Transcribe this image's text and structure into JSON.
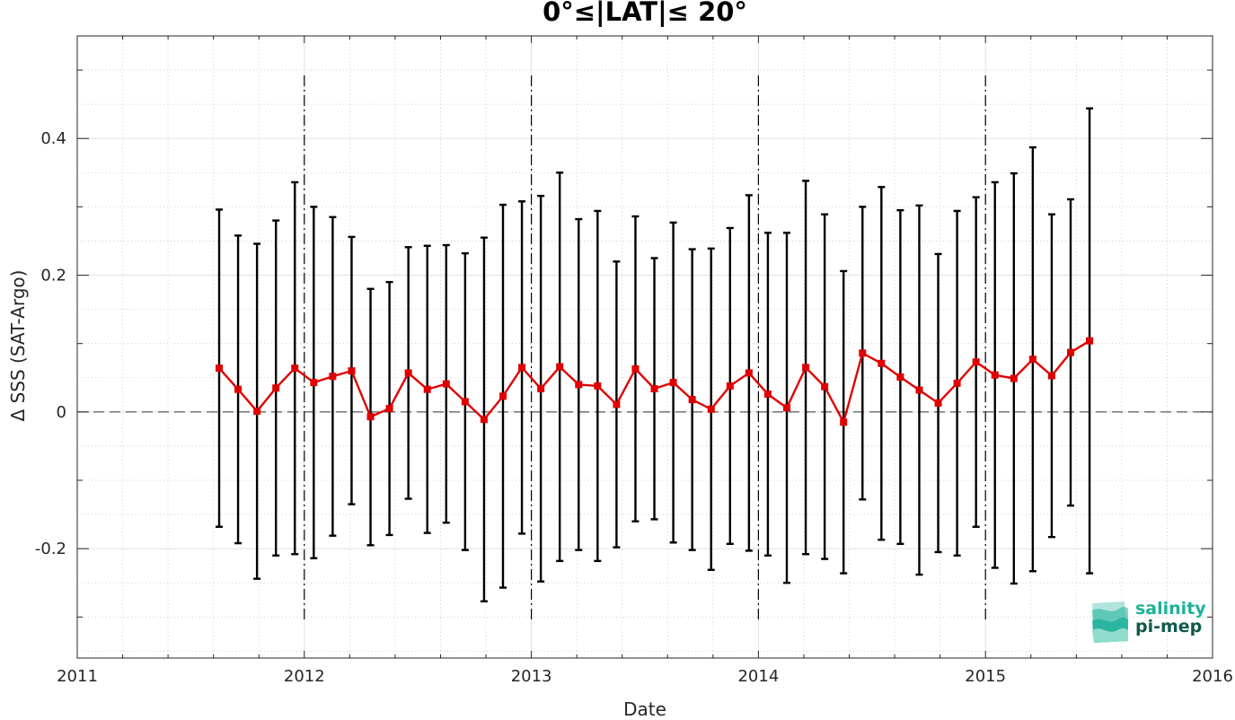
{
  "chart_data": {
    "type": "line",
    "title": "0°≤|LAT|≤ 20°",
    "xlabel": "Date",
    "ylabel": "Δ SSS (SAT-Argo)",
    "xlim": [
      2011,
      2016
    ],
    "ylim": [
      -0.36,
      0.55
    ],
    "x_ticks": [
      "2011",
      "2012",
      "2013",
      "2014",
      "2015",
      "2016"
    ],
    "y_ticks": [
      "0.4",
      "0.2",
      "0",
      "-0.2"
    ],
    "y_tick_values": [
      0.4,
      0.2,
      0,
      -0.2
    ],
    "grid": true,
    "series": [
      {
        "color": "#e00000",
        "marker": "square",
        "points": [
          {
            "x": "2011-08",
            "y": 0.064,
            "low": -0.168,
            "high": 0.296
          },
          {
            "x": "2011-09",
            "y": 0.033,
            "low": -0.192,
            "high": 0.258
          },
          {
            "x": "2011-10",
            "y": 0.001,
            "low": -0.244,
            "high": 0.246
          },
          {
            "x": "2011-11",
            "y": 0.035,
            "low": -0.21,
            "high": 0.28
          },
          {
            "x": "2011-12",
            "y": 0.064,
            "low": -0.208,
            "high": 0.336
          },
          {
            "x": "2012-01",
            "y": 0.043,
            "low": -0.214,
            "high": 0.3
          },
          {
            "x": "2012-02",
            "y": 0.052,
            "low": -0.181,
            "high": 0.285
          },
          {
            "x": "2012-03",
            "y": 0.06,
            "low": -0.135,
            "high": 0.256
          },
          {
            "x": "2012-04",
            "y": -0.007,
            "low": -0.195,
            "high": 0.18
          },
          {
            "x": "2012-05",
            "y": 0.005,
            "low": -0.18,
            "high": 0.19
          },
          {
            "x": "2012-06",
            "y": 0.057,
            "low": -0.127,
            "high": 0.241
          },
          {
            "x": "2012-07",
            "y": 0.033,
            "low": -0.177,
            "high": 0.243
          },
          {
            "x": "2012-08",
            "y": 0.041,
            "low": -0.162,
            "high": 0.244
          },
          {
            "x": "2012-09",
            "y": 0.015,
            "low": -0.202,
            "high": 0.232
          },
          {
            "x": "2012-10",
            "y": -0.011,
            "low": -0.277,
            "high": 0.255
          },
          {
            "x": "2012-11",
            "y": 0.023,
            "low": -0.257,
            "high": 0.303
          },
          {
            "x": "2012-12",
            "y": 0.065,
            "low": -0.178,
            "high": 0.308
          },
          {
            "x": "2013-01",
            "y": 0.034,
            "low": -0.248,
            "high": 0.316
          },
          {
            "x": "2013-02",
            "y": 0.066,
            "low": -0.218,
            "high": 0.35
          },
          {
            "x": "2013-03",
            "y": 0.04,
            "low": -0.202,
            "high": 0.282
          },
          {
            "x": "2013-04",
            "y": 0.038,
            "low": -0.218,
            "high": 0.294
          },
          {
            "x": "2013-05",
            "y": 0.011,
            "low": -0.198,
            "high": 0.22
          },
          {
            "x": "2013-06",
            "y": 0.063,
            "low": -0.16,
            "high": 0.286
          },
          {
            "x": "2013-07",
            "y": 0.034,
            "low": -0.157,
            "high": 0.225
          },
          {
            "x": "2013-08",
            "y": 0.043,
            "low": -0.191,
            "high": 0.277
          },
          {
            "x": "2013-09",
            "y": 0.018,
            "low": -0.202,
            "high": 0.238
          },
          {
            "x": "2013-10",
            "y": 0.004,
            "low": -0.231,
            "high": 0.239
          },
          {
            "x": "2013-11",
            "y": 0.038,
            "low": -0.193,
            "high": 0.269
          },
          {
            "x": "2013-12",
            "y": 0.057,
            "low": -0.203,
            "high": 0.317
          },
          {
            "x": "2014-01",
            "y": 0.026,
            "low": -0.21,
            "high": 0.262
          },
          {
            "x": "2014-02",
            "y": 0.006,
            "low": -0.25,
            "high": 0.262
          },
          {
            "x": "2014-03",
            "y": 0.065,
            "low": -0.208,
            "high": 0.338
          },
          {
            "x": "2014-04",
            "y": 0.037,
            "low": -0.215,
            "high": 0.289
          },
          {
            "x": "2014-05",
            "y": -0.015,
            "low": -0.236,
            "high": 0.206
          },
          {
            "x": "2014-06",
            "y": 0.086,
            "low": -0.128,
            "high": 0.3
          },
          {
            "x": "2014-07",
            "y": 0.071,
            "low": -0.187,
            "high": 0.329
          },
          {
            "x": "2014-08",
            "y": 0.051,
            "low": -0.193,
            "high": 0.295
          },
          {
            "x": "2014-09",
            "y": 0.032,
            "low": -0.238,
            "high": 0.302
          },
          {
            "x": "2014-10",
            "y": 0.013,
            "low": -0.205,
            "high": 0.231
          },
          {
            "x": "2014-11",
            "y": 0.042,
            "low": -0.21,
            "high": 0.294
          },
          {
            "x": "2014-12",
            "y": 0.073,
            "low": -0.168,
            "high": 0.314
          },
          {
            "x": "2015-01",
            "y": 0.054,
            "low": -0.228,
            "high": 0.336
          },
          {
            "x": "2015-02",
            "y": 0.049,
            "low": -0.251,
            "high": 0.349
          },
          {
            "x": "2015-03",
            "y": 0.077,
            "low": -0.233,
            "high": 0.387
          },
          {
            "x": "2015-04",
            "y": 0.053,
            "low": -0.183,
            "high": 0.289
          },
          {
            "x": "2015-05",
            "y": 0.087,
            "low": -0.137,
            "high": 0.311
          },
          {
            "x": "2015-06",
            "y": 0.104,
            "low": -0.236,
            "high": 0.444
          }
        ]
      }
    ]
  },
  "logo": {
    "line1": "salinity",
    "line2": "pi-mep",
    "colors": [
      "#1db29a",
      "#0f5a4a"
    ]
  }
}
